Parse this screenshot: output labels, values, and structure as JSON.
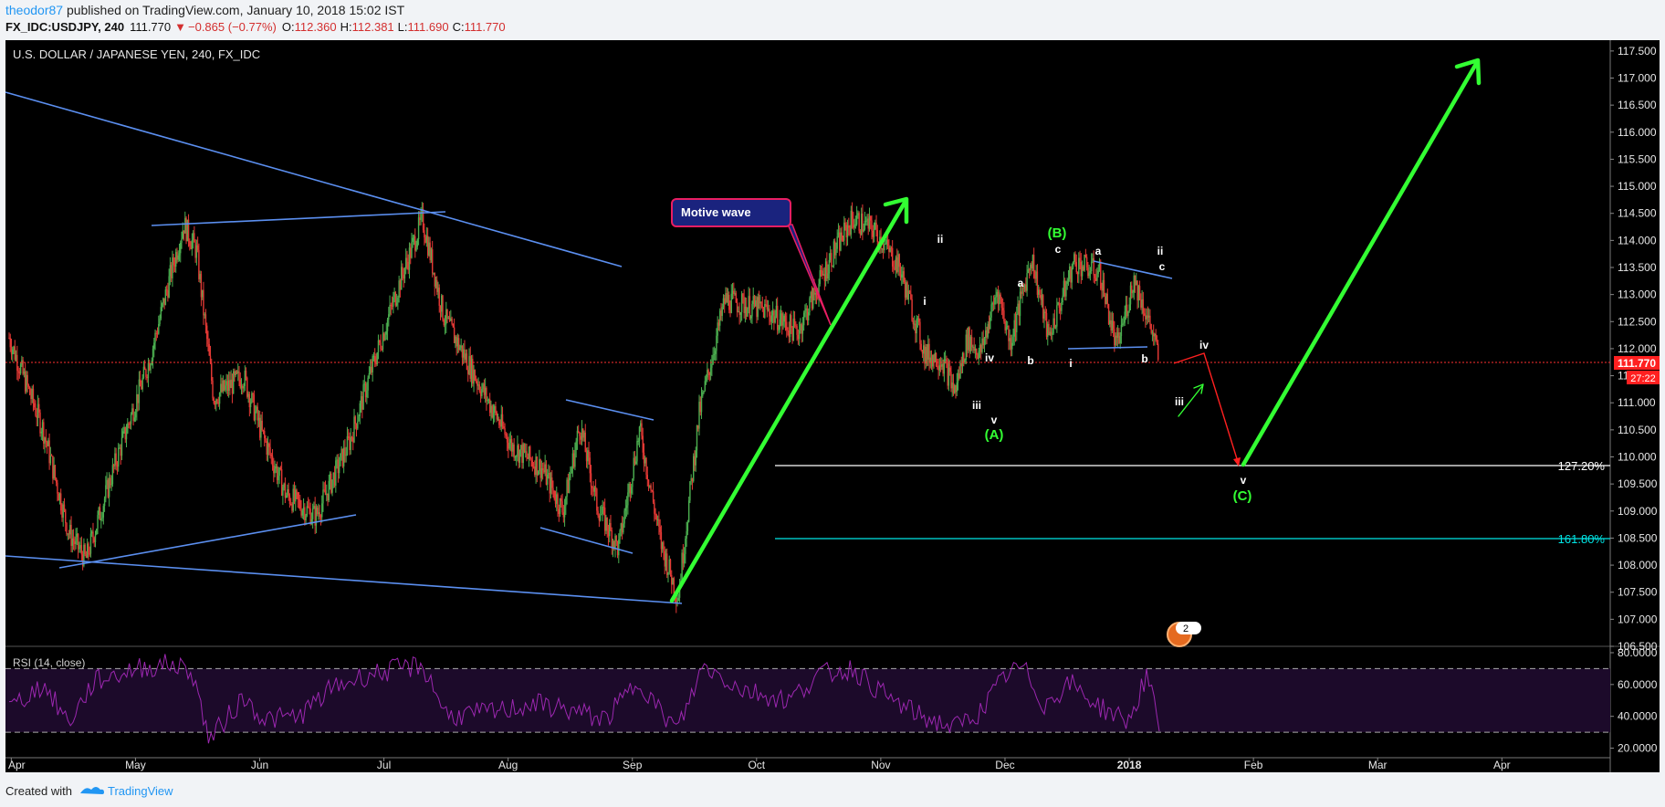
{
  "header": {
    "author": "theodor87",
    "published_text": " published on TradingView.com, January 10, 2018 15:02 IST",
    "symbol_line": "FX_IDC:USDJPY, 240",
    "last": "111.770",
    "change": "−0.865 (−0.77%)",
    "open_label": "O:",
    "open": "112.360",
    "high_label": "H:",
    "high": "112.381",
    "low_label": "L:",
    "low": "111.690",
    "close_label": "C:",
    "close": "111.770"
  },
  "footer": {
    "created_with": "Created with",
    "brand": "TradingView"
  },
  "colors": {
    "background": "#000000",
    "up_candle": "#4caf50",
    "down_candle": "#e53935",
    "trendline": "#5b8ff0",
    "impulse_arrow": "#33ff33",
    "projection": "#ff2020",
    "rsi": "#9c27b0",
    "fib_127": "#ffffff",
    "fib_161": "#00e5e5"
  },
  "chart_data": {
    "type": "candlestick",
    "title": "U.S. DOLLAR / JAPANESE YEN, 240, FX_IDC",
    "last_price": 111.77,
    "last_price_label": "111.770",
    "countdown_label": "27:22",
    "ylim": [
      106.5,
      117.7
    ],
    "y_ticks": [
      "106.500",
      "107.000",
      "107.500",
      "108.000",
      "108.500",
      "109.000",
      "109.500",
      "110.000",
      "110.500",
      "111.000",
      "111.500",
      "112.000",
      "112.500",
      "113.000",
      "113.500",
      "114.000",
      "114.500",
      "115.000",
      "115.500",
      "116.000",
      "116.500",
      "117.000",
      "117.500"
    ],
    "x_ticks": [
      "Apr",
      "May",
      "Jun",
      "Jul",
      "Aug",
      "Sep",
      "Oct",
      "Nov",
      "Dec",
      "2018",
      "Feb",
      "Mar",
      "Apr"
    ],
    "price_path": [
      [
        0,
        112.2
      ],
      [
        8,
        110.5
      ],
      [
        14,
        108.6
      ],
      [
        18,
        108.1
      ],
      [
        25,
        109.9
      ],
      [
        33,
        111.8
      ],
      [
        38,
        113.4
      ],
      [
        41,
        114.3
      ],
      [
        44,
        113.8
      ],
      [
        48,
        111.1
      ],
      [
        55,
        111.5
      ],
      [
        59,
        110.5
      ],
      [
        65,
        109.3
      ],
      [
        72,
        108.9
      ],
      [
        80,
        110.3
      ],
      [
        85,
        111.6
      ],
      [
        92,
        113.3
      ],
      [
        97,
        114.4
      ],
      [
        102,
        112.6
      ],
      [
        110,
        111.4
      ],
      [
        118,
        110.2
      ],
      [
        125,
        109.8
      ],
      [
        130,
        109.0
      ],
      [
        134,
        110.6
      ],
      [
        138,
        109.1
      ],
      [
        143,
        108.3
      ],
      [
        148,
        110.5
      ],
      [
        153,
        108.4
      ],
      [
        157,
        107.4
      ],
      [
        162,
        110.8
      ],
      [
        168,
        112.9
      ],
      [
        178,
        112.7
      ],
      [
        185,
        112.3
      ],
      [
        193,
        113.7
      ],
      [
        198,
        114.4
      ],
      [
        203,
        114.2
      ],
      [
        209,
        113.5
      ],
      [
        215,
        111.9
      ],
      [
        219,
        111.8
      ],
      [
        222,
        111.2
      ],
      [
        225,
        112.2
      ],
      [
        228,
        111.9
      ],
      [
        232,
        113.1
      ],
      [
        235,
        112.1
      ],
      [
        240,
        113.7
      ],
      [
        244,
        112.2
      ],
      [
        250,
        113.6
      ],
      [
        256,
        113.4
      ],
      [
        260,
        112.0
      ],
      [
        264,
        113.3
      ],
      [
        268,
        112.4
      ],
      [
        270,
        111.77
      ]
    ],
    "rsi": {
      "label": "RSI (14, close)",
      "ylim": [
        14,
        84
      ],
      "y_ticks": [
        "20.0000",
        "40.0000",
        "60.0000",
        "80.0000"
      ],
      "upper": 70,
      "lower": 30,
      "path": [
        [
          0,
          45
        ],
        [
          8,
          60
        ],
        [
          14,
          36
        ],
        [
          20,
          62
        ],
        [
          30,
          70
        ],
        [
          38,
          73
        ],
        [
          43,
          68
        ],
        [
          47,
          25
        ],
        [
          55,
          52
        ],
        [
          60,
          38
        ],
        [
          68,
          40
        ],
        [
          76,
          58
        ],
        [
          84,
          66
        ],
        [
          92,
          70
        ],
        [
          97,
          72
        ],
        [
          103,
          40
        ],
        [
          115,
          43
        ],
        [
          123,
          48
        ],
        [
          130,
          45
        ],
        [
          140,
          38
        ],
        [
          148,
          63
        ],
        [
          153,
          42
        ],
        [
          157,
          32
        ],
        [
          163,
          72
        ],
        [
          172,
          57
        ],
        [
          183,
          50
        ],
        [
          190,
          66
        ],
        [
          198,
          70
        ],
        [
          206,
          52
        ],
        [
          214,
          40
        ],
        [
          222,
          33
        ],
        [
          228,
          43
        ],
        [
          234,
          66
        ],
        [
          238,
          71
        ],
        [
          243,
          47
        ],
        [
          249,
          61
        ],
        [
          256,
          46
        ],
        [
          263,
          37
        ],
        [
          267,
          66
        ],
        [
          270,
          33
        ]
      ]
    },
    "annotations": {
      "callout": "Motive wave",
      "fib_127": "127.20%",
      "fib_161": "161.80%",
      "badge_count": "2",
      "waves": [
        "ii",
        "i",
        "iv",
        "iii",
        "v",
        "(A)",
        "(B)",
        "c",
        "a",
        "b",
        "a",
        "i",
        "b",
        "ii",
        "c",
        "iv",
        "iii",
        "v",
        "(C)"
      ]
    }
  }
}
